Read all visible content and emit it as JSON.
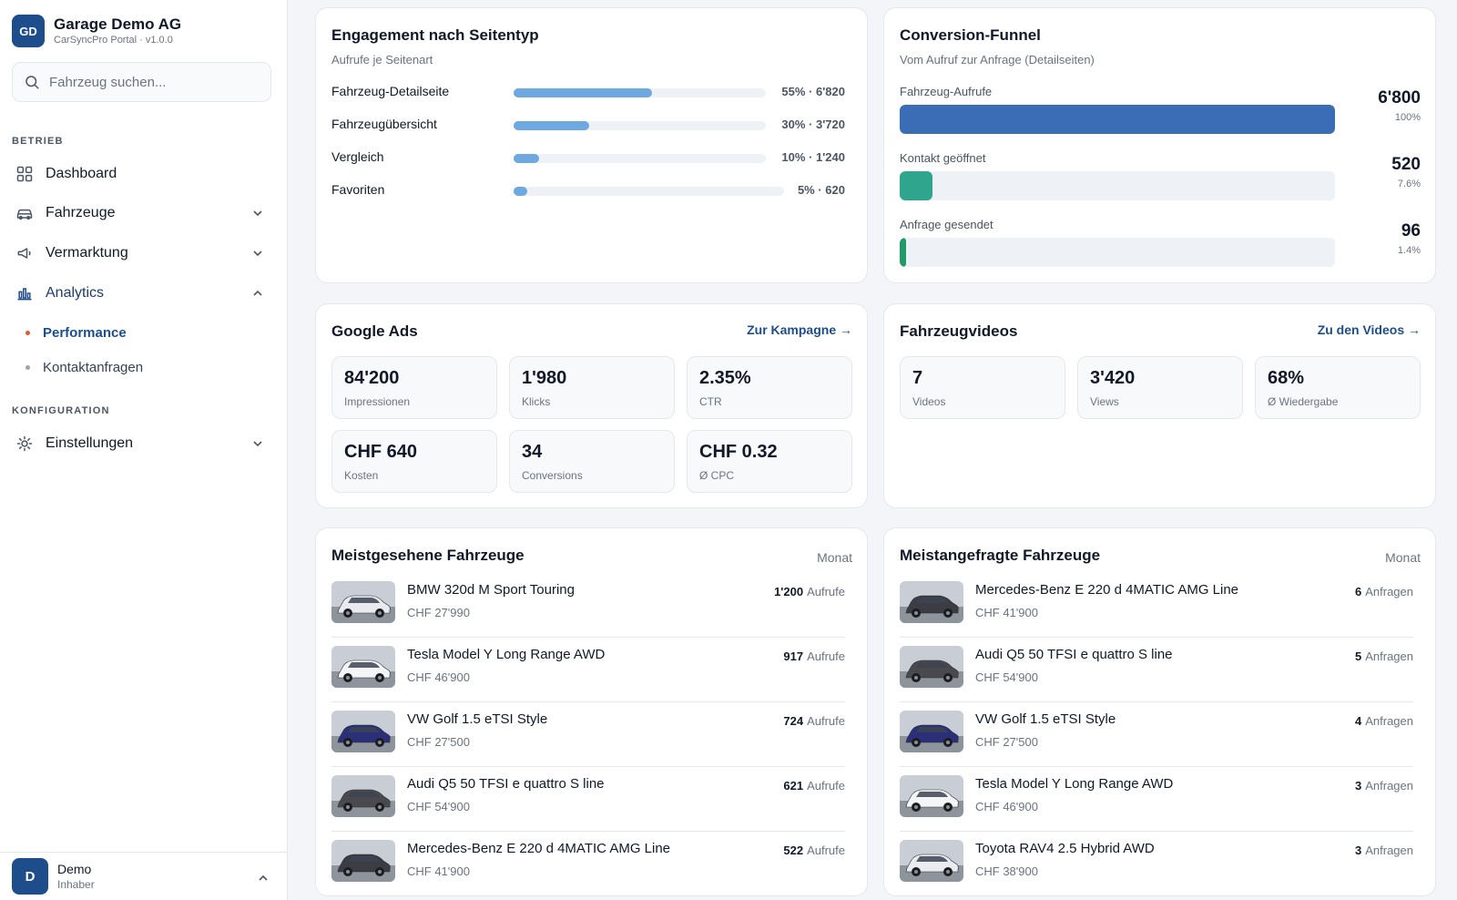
{
  "brand": {
    "initials": "GD",
    "name": "Garage Demo AG",
    "sub": "CarSyncPro Portal · v1.0.0"
  },
  "search": {
    "placeholder": "Fahrzeug suchen..."
  },
  "nav": {
    "section1": "BETRIEB",
    "section2": "KONFIGURATION",
    "dashboard": "Dashboard",
    "fahrzeuge": "Fahrzeuge",
    "vermarktung": "Vermarktung",
    "analytics": "Analytics",
    "performance": "Performance",
    "kontaktanfragen": "Kontaktanfragen",
    "einstellungen": "Einstellungen"
  },
  "user": {
    "initial": "D",
    "name": "Demo",
    "role": "Inhaber"
  },
  "engagement": {
    "title": "Engagement nach Seitentyp",
    "subtitle": "Aufrufe je Seitenart",
    "rows": [
      {
        "name": "Fahrzeug-Detailseite",
        "value": "55% · 6'820",
        "fill": 0.55
      },
      {
        "name": "Fahrzeugübersicht",
        "value": "30% · 3'720",
        "fill": 0.3
      },
      {
        "name": "Vergleich",
        "value": "10% · 1'240",
        "fill": 0.1
      },
      {
        "name": "Favoriten",
        "value": "5% · 620",
        "fill": 0.05
      }
    ]
  },
  "funnel": {
    "title": "Conversion-Funnel",
    "subtitle": "Vom Aufruf zur Anfrage (Detailseiten)",
    "steps": [
      {
        "label": "Fahrzeug-Aufrufe",
        "num": "6'800",
        "pct": "100%",
        "fill": 1.0,
        "color": "#3a6db5"
      },
      {
        "label": "Kontakt geöffnet",
        "num": "520",
        "pct": "7.6%",
        "fill": 0.076,
        "color": "#2fa58e"
      },
      {
        "label": "Anfrage gesendet",
        "num": "96",
        "pct": "1.4%",
        "fill": 0.014,
        "color": "#1f9a68"
      }
    ]
  },
  "ads": {
    "title": "Google Ads",
    "link": "Zur Kampagne →",
    "tiles": [
      {
        "value": "84'200",
        "label": "Impressionen"
      },
      {
        "value": "1'980",
        "label": "Klicks"
      },
      {
        "value": "2.35%",
        "label": "CTR"
      },
      {
        "value": "CHF 640",
        "label": "Kosten"
      },
      {
        "value": "34",
        "label": "Conversions"
      },
      {
        "value": "CHF 0.32",
        "label": "Ø CPC"
      }
    ]
  },
  "videos": {
    "title": "Fahrzeugvideos",
    "link": "Zu den Videos →",
    "tiles": [
      {
        "value": "7",
        "label": "Videos"
      },
      {
        "value": "3'420",
        "label": "Views"
      },
      {
        "value": "68%",
        "label": "Ø Wiedergabe"
      }
    ]
  },
  "most_viewed": {
    "title": "Meistgesehene Fahrzeuge",
    "period": "Monat",
    "unit": "Aufrufe",
    "items": [
      {
        "title": "BMW 320d M Sport Touring",
        "price": "CHF 27'990",
        "count": "1'200",
        "car_color": "#e8eaee"
      },
      {
        "title": "Tesla Model Y Long Range AWD",
        "price": "CHF 46'900",
        "count": "917",
        "car_color": "#f4f5f7"
      },
      {
        "title": "VW Golf 1.5 eTSI Style",
        "price": "CHF 27'500",
        "count": "724",
        "car_color": "#2b2f78"
      },
      {
        "title": "Audi Q5 50 TFSI e quattro S line",
        "price": "CHF 54'900",
        "count": "621",
        "car_color": "#4a4a4e"
      },
      {
        "title": "Mercedes-Benz E 220 d 4MATIC AMG Line",
        "price": "CHF 41'900",
        "count": "522",
        "car_color": "#3b3d42"
      }
    ]
  },
  "most_requested": {
    "title": "Meistangefragte Fahrzeuge",
    "period": "Monat",
    "unit": "Anfragen",
    "items": [
      {
        "title": "Mercedes-Benz E 220 d 4MATIC AMG Line",
        "price": "CHF 41'900",
        "count": "6",
        "car_color": "#3b3d42"
      },
      {
        "title": "Audi Q5 50 TFSI e quattro S line",
        "price": "CHF 54'900",
        "count": "5",
        "car_color": "#4a4a4e"
      },
      {
        "title": "VW Golf 1.5 eTSI Style",
        "price": "CHF 27'500",
        "count": "4",
        "car_color": "#2b2f78"
      },
      {
        "title": "Tesla Model Y Long Range AWD",
        "price": "CHF 46'900",
        "count": "3",
        "car_color": "#f4f5f7"
      },
      {
        "title": "Toyota RAV4 2.5 Hybrid AWD",
        "price": "CHF 38'900",
        "count": "3",
        "car_color": "#e9ebee"
      }
    ]
  }
}
